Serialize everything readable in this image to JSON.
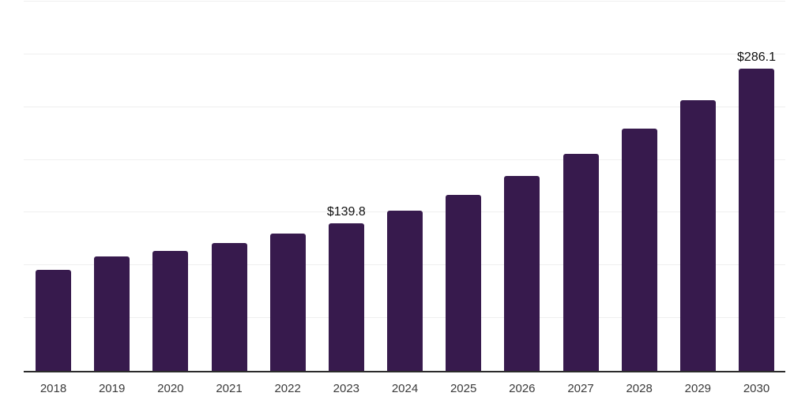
{
  "chart_data": {
    "type": "bar",
    "title": "",
    "xlabel": "",
    "ylabel": "",
    "categories": [
      "2018",
      "2019",
      "2020",
      "2021",
      "2022",
      "2023",
      "2024",
      "2025",
      "2026",
      "2027",
      "2028",
      "2029",
      "2030"
    ],
    "values": [
      95.8,
      108.2,
      114.0,
      120.8,
      130.2,
      139.8,
      151.6,
      166.9,
      185.0,
      206.0,
      229.5,
      256.4,
      286.1
    ],
    "value_labels": [
      "",
      "",
      "",
      "",
      "",
      "$139.8",
      "",
      "",
      "",
      "",
      "",
      "",
      "$286.1"
    ],
    "ylim": [
      0,
      350
    ],
    "gridline_step": 50,
    "grid": true,
    "legend": false,
    "colors": {
      "bar": "#371A4D",
      "grid": "#EFEFEF",
      "axis": "#2B2B2B",
      "value_label": "#111111",
      "tick_label": "#3A3A3A",
      "background": "#FFFFFF"
    }
  }
}
